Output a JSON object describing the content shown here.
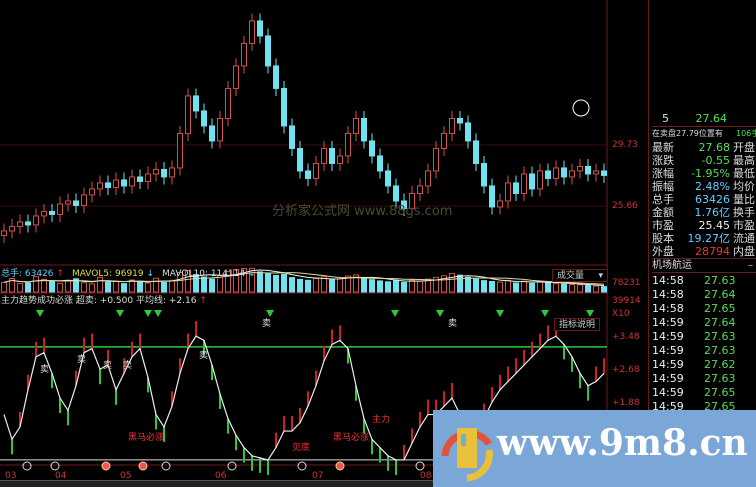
{
  "chart_data": [
    {
      "type": "candlestick",
      "price_axis_ticks": [
        "29.73",
        "25.66"
      ],
      "grid": false,
      "closes": [
        24.0,
        24.3,
        24.6,
        24.4,
        25.0,
        25.3,
        25.1,
        25.8,
        26.0,
        25.7,
        26.4,
        26.8,
        27.2,
        26.9,
        27.4,
        27.0,
        27.6,
        27.3,
        27.8,
        28.1,
        27.6,
        28.2,
        30.5,
        33.0,
        32.0,
        31.0,
        30.0,
        31.5,
        33.5,
        35.0,
        36.5,
        38.0,
        37.0,
        35.0,
        33.5,
        31.0,
        29.5,
        28.0,
        27.5,
        28.5,
        29.5,
        28.5,
        29.0,
        30.5,
        31.5,
        30.0,
        29.0,
        28.0,
        27.0,
        26.0,
        25.5,
        26.5,
        27.0,
        28.0,
        29.5,
        30.5,
        31.5,
        31.2,
        30.0,
        28.5,
        27.0,
        25.6,
        26.0,
        27.2,
        26.5,
        27.8,
        26.8,
        28.0,
        27.5,
        28.2,
        27.6,
        28.0,
        28.3,
        27.8,
        28.0,
        27.7
      ],
      "watermark": "分析家公式网  www.88gs.com"
    },
    {
      "type": "bar",
      "title": "总手: 63426",
      "ma_labels": [
        "MAVOL5: 96919",
        "MAVOL10: 114114"
      ],
      "axis_ticks": [
        "78231",
        "39914",
        "X10"
      ],
      "selector": "成交量",
      "values": [
        3.2,
        4.5,
        2.8,
        3.0,
        5.1,
        4.2,
        3.6,
        2.9,
        3.8,
        4.4,
        3.1,
        2.7,
        4.9,
        3.3,
        3.5,
        2.8,
        4.0,
        3.6,
        3.0,
        4.6,
        3.2,
        3.9,
        6.5,
        7.2,
        5.8,
        5.0,
        4.3,
        5.6,
        6.8,
        7.5,
        7.82,
        7.9,
        6.7,
        6.1,
        5.5,
        5.9,
        4.8,
        4.2,
        3.9,
        4.5,
        5.1,
        4.0,
        4.4,
        5.3,
        5.7,
        4.8,
        4.1,
        3.7,
        3.4,
        3.9,
        3.2,
        4.0,
        3.6,
        4.3,
        4.9,
        5.4,
        6.2,
        5.6,
        4.9,
        4.3,
        3.8,
        3.5,
        3.3,
        3.9,
        3.0,
        3.6,
        2.9,
        3.4,
        3.1,
        2.8,
        2.6,
        2.5,
        2.4,
        2.2,
        2.0,
        1.8
      ]
    },
    {
      "type": "line",
      "title": "主力趋势成功必涨",
      "params": [
        "超卖: +0.500",
        "平均线: +2.16"
      ],
      "button": "指标说明",
      "axis_ticks": [
        "+3.48",
        "+2.68",
        "+1.88"
      ],
      "oversold": 0.5,
      "signal_level": 3.24,
      "values": [
        1.6,
        1.0,
        1.3,
        2.2,
        3.0,
        3.1,
        2.6,
        2.0,
        1.7,
        2.3,
        3.1,
        3.2,
        2.7,
        2.8,
        2.2,
        2.6,
        3.0,
        3.2,
        2.5,
        1.6,
        1.3,
        1.8,
        2.6,
        3.2,
        3.5,
        3.4,
        2.8,
        2.1,
        1.5,
        1.1,
        0.8,
        0.6,
        0.55,
        0.5,
        0.8,
        1.2,
        1.2,
        1.4,
        1.8,
        2.3,
        2.9,
        3.3,
        3.4,
        3.2,
        2.3,
        1.5,
        1.0,
        0.8,
        0.6,
        0.5,
        0.5,
        0.9,
        1.3,
        1.6,
        1.6,
        1.8,
        2.0,
        1.6,
        1.3,
        1.2,
        1.5,
        1.9,
        2.2,
        2.4,
        2.6,
        2.8,
        3.0,
        3.2,
        3.4,
        3.5,
        3.3,
        3.0,
        2.6,
        2.3,
        2.4,
        2.6
      ],
      "annotations": [
        "卖",
        "卖",
        "卖",
        "卖",
        "卖",
        "卖",
        "卖",
        "黑马必涨",
        "见底",
        "黑马必涨",
        "主力"
      ],
      "date_labels": [
        "03",
        "04",
        "05",
        "06",
        "07",
        "08"
      ]
    }
  ],
  "panel": {
    "top_row": {
      "label": "5",
      "value": "27.64"
    },
    "ask_note": "在卖盘27.79位置有",
    "ask_qty": "106手",
    "rows": [
      {
        "label": "最新",
        "value": "27.68",
        "label2": "开盘",
        "color": "#5d5"
      },
      {
        "label": "涨跌",
        "value": "-0.55",
        "label2": "最高",
        "color": "#5d5"
      },
      {
        "label": "涨幅",
        "value": "-1.95%",
        "label2": "最低",
        "color": "#5d5"
      },
      {
        "label": "振幅",
        "value": "2.48%",
        "label2": "均价",
        "color": "#6cf"
      },
      {
        "label": "总手",
        "value": "63426",
        "label2": "量比",
        "color": "#6cf"
      },
      {
        "label": "金额",
        "value": "1.76亿",
        "label2": "换手",
        "color": "#6cf"
      },
      {
        "label": "市盈",
        "value": "25.45",
        "label2": "市盈(",
        "color": "#eee"
      },
      {
        "label": "股本",
        "value": "19.27亿",
        "label2": "流通",
        "color": "#6cf"
      },
      {
        "label": "外盘",
        "value": "28794",
        "label2": "内盘",
        "color": "#e33"
      }
    ],
    "sector": "机场航运",
    "ticks": [
      {
        "time": "14:58",
        "price": "27.63"
      },
      {
        "time": "14:58",
        "price": "27.64"
      },
      {
        "time": "14:58",
        "price": "27.65"
      },
      {
        "time": "14:59",
        "price": "27.64"
      },
      {
        "time": "14:59",
        "price": "27.63"
      },
      {
        "time": "14:59",
        "price": "27.63"
      },
      {
        "time": "14:59",
        "price": "27.62"
      },
      {
        "time": "14:59",
        "price": "27.63"
      },
      {
        "time": "14:59",
        "price": "27.65"
      },
      {
        "time": "14:59",
        "price": "27.65"
      }
    ]
  },
  "watermark_site": "www.9m8.cn",
  "colors": {
    "up": "#d0504a",
    "down": "#6fe3f0",
    "signal": "#2ec93a",
    "axis": "#6b1a1a"
  }
}
